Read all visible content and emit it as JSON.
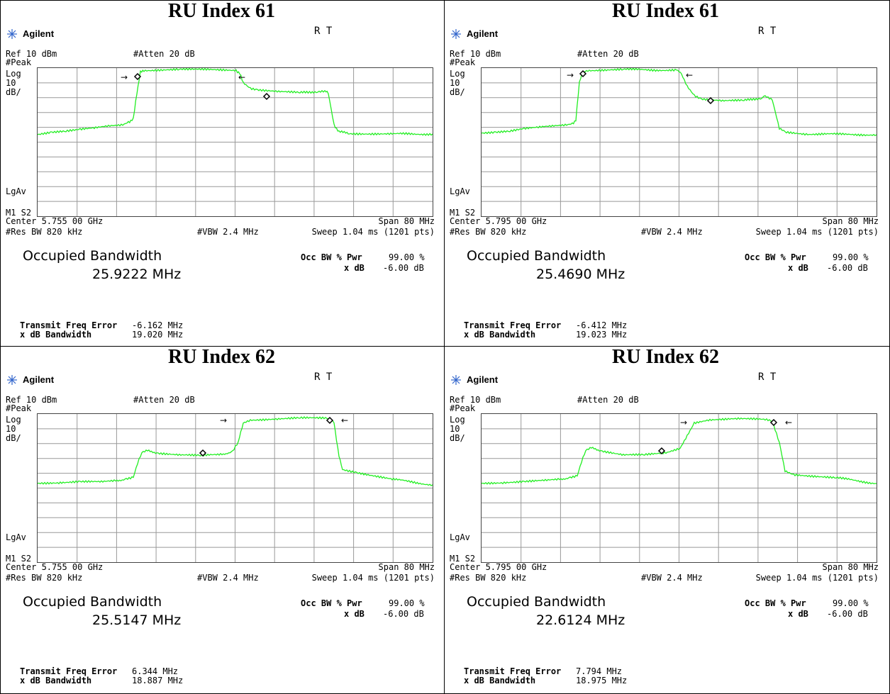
{
  "panels": [
    {
      "title": "RU Index 61",
      "brand": "Agilent",
      "rt": "R  T",
      "ref": "Ref 10 dBm",
      "atten": "#Atten 20 dB",
      "peak": "#Peak",
      "log": "Log",
      "scale_val": "10",
      "scale_unit": "dB/",
      "lgav": "LgAv",
      "m1s2": "M1  S2",
      "center": "Center 5.755 00 GHz",
      "span": "Span 80 MHz",
      "resbw": "#Res BW 820 kHz",
      "vbw": "#VBW 2.4 MHz",
      "sweep": "Sweep 1.04 ms (1201 pts)",
      "occ_title": "Occupied Bandwidth",
      "occ_value": "25.9222 MHz",
      "occ_bw_label": "Occ BW % Pwr",
      "occ_bw_val": "99.00 %",
      "xdb_label": "x dB",
      "xdb_val": "-6.00 dB",
      "tfe_label": "Transmit Freq Error",
      "tfe_val": "-6.162 MHz",
      "xdbbw_label": "x dB Bandwidth",
      "xdbbw_val": "19.020 MHz",
      "trace": [
        [
          0,
          62
        ],
        [
          18,
          60
        ],
        [
          20,
          57
        ],
        [
          22,
          56
        ],
        [
          24,
          58
        ],
        [
          26,
          57
        ],
        [
          28,
          55
        ],
        [
          30,
          52
        ],
        [
          33,
          50
        ],
        [
          36,
          47
        ],
        [
          38,
          48
        ],
        [
          40,
          46
        ],
        [
          42,
          44
        ],
        [
          44,
          43
        ],
        [
          46,
          40
        ],
        [
          48,
          39
        ],
        [
          50,
          40
        ],
        [
          52,
          38
        ],
        [
          54,
          38
        ],
        [
          56,
          38
        ],
        [
          56,
          36
        ],
        [
          64,
          40
        ],
        [
          66,
          63
        ],
        [
          70,
          80
        ],
        [
          110,
          82
        ],
        [
          150,
          82
        ],
        [
          180,
          82
        ],
        [
          220,
          82
        ],
        [
          266,
          80
        ],
        [
          277,
          70
        ],
        [
          285,
          69
        ],
        [
          310,
          67
        ],
        [
          330,
          66
        ],
        [
          360,
          65
        ],
        [
          370,
          66
        ],
        [
          380,
          66
        ],
        [
          393,
          68
        ],
        [
          402,
          70
        ],
        [
          410,
          52
        ],
        [
          420,
          48
        ],
        [
          500,
          47
        ],
        [
          550,
          47
        ]
      ],
      "trace_color": "#22ee22",
      "markers": [
        [
          141,
          81
        ],
        [
          323,
          75
        ]
      ],
      "arrow_left": [
        125,
        83
      ],
      "arrow_right": [
        283,
        82
      ]
    },
    {
      "title": "RU Index 61",
      "brand": "Agilent",
      "rt": "R  T",
      "ref": "Ref 10 dBm",
      "atten": "#Atten 20 dB",
      "peak": "#Peak",
      "log": "Log",
      "scale_val": "10",
      "scale_unit": "dB/",
      "lgav": "LgAv",
      "m1s2": "M1  S2",
      "center": "Center 5.795 00 GHz",
      "span": "Span 80 MHz",
      "resbw": "#Res BW 820 kHz",
      "vbw": "#VBW 2.4 MHz",
      "sweep": "Sweep 1.04 ms (1201 pts)",
      "occ_title": "Occupied Bandwidth",
      "occ_value": "25.4690 MHz",
      "occ_bw_label": "Occ BW % Pwr",
      "occ_bw_val": "99.00 %",
      "xdb_label": "x dB",
      "xdb_val": "-6.00 dB",
      "tfe_label": "Transmit Freq Error",
      "tfe_val": "-6.412 MHz",
      "xdbbw_label": "x dB Bandwidth",
      "xdbbw_val": "19.023 MHz",
      "trace_color": "#22ee22",
      "markers": [
        [
          143,
          81
        ],
        [
          323,
          75
        ]
      ],
      "arrow_left": [
        128,
        84
      ],
      "arrow_right": [
        288,
        83
      ]
    },
    {
      "title": "RU Index 62",
      "brand": "Agilent",
      "rt": "R  T",
      "ref": "Ref 10 dBm",
      "atten": "#Atten 20 dB",
      "peak": "#Peak",
      "log": "Log",
      "scale_val": "10",
      "scale_unit": "dB/",
      "lgav": "LgAv",
      "m1s2": "M1  S2",
      "center": "Center 5.755 00 GHz",
      "span": "Span 80 MHz",
      "resbw": "#Res BW 820 kHz",
      "vbw": "#VBW 2.4 MHz",
      "sweep": "Sweep 1.04 ms (1201 pts)",
      "occ_title": "Occupied Bandwidth",
      "occ_value": "25.5147 MHz",
      "occ_bw_label": "Occ BW % Pwr",
      "occ_bw_val": "99.00 %",
      "xdb_label": "x dB",
      "xdb_val": "-6.00 dB",
      "tfe_label": "Transmit Freq Error",
      "tfe_val": "6.344 MHz",
      "xdbbw_label": "x dB Bandwidth",
      "xdbbw_val": "18.887 MHz",
      "trace_color": "#22ee22",
      "markers": [
        [
          233,
          68
        ],
        [
          412,
          84
        ]
      ],
      "arrow_left": [
        265,
        84
      ],
      "arrow_right": [
        428,
        84
      ]
    },
    {
      "title": "RU Index 62",
      "brand": "Agilent",
      "rt": "R  T",
      "ref": "Ref 10 dBm",
      "atten": "#Atten 20 dB",
      "peak": "#Peak",
      "log": "Log",
      "scale_val": "10",
      "scale_unit": "dB/",
      "lgav": "LgAv",
      "m1s2": "M1  S2",
      "center": "Center 5.795 00 GHz",
      "span": "Span 80 MHz",
      "resbw": "#Res BW 820 kHz",
      "vbw": "#VBW 2.4 MHz",
      "sweep": "Sweep 1.04 ms (1201 pts)",
      "occ_title": "Occupied Bandwidth",
      "occ_value": "22.6124 MHz",
      "occ_bw_label": "Occ BW % Pwr",
      "occ_bw_val": "99.00 %",
      "xdb_label": "x dB",
      "xdb_val": "-6.00 dB",
      "tfe_label": "Transmit Freq Error",
      "tfe_val": "7.794 MHz",
      "xdbbw_label": "x dB Bandwidth",
      "xdbbw_val": "18.975 MHz",
      "trace_color": "#22ee22",
      "markers": [
        [
          254,
          68
        ],
        [
          412,
          80
        ]
      ],
      "arrow_left": [
        288,
        80
      ],
      "arrow_right": [
        428,
        80
      ]
    }
  ]
}
